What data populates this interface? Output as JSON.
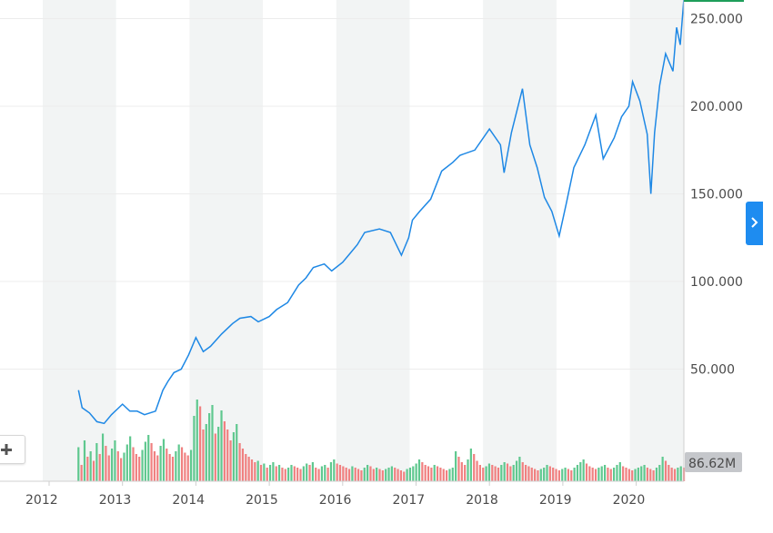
{
  "colors": {
    "price_line": "#1e88e5",
    "volume_up": "#5fc88f",
    "volume_down": "#f08080",
    "band": "#f2f4f4",
    "grid": "#ececec",
    "label_badge": "#c5c7cb",
    "current_marker": "#1e9e5a",
    "accent_tab": "#1e8cf0"
  },
  "controls": {
    "expand_icon": "chevron-right-icon",
    "zoom_icon": "plus-icon"
  },
  "chart_data": {
    "type": "line",
    "title": "",
    "xlabel": "",
    "ylabel": "",
    "x_ticks": [
      "2012",
      "2013",
      "2014",
      "2015",
      "2016",
      "2017",
      "2018",
      "2019",
      "2020"
    ],
    "y_ticks": [
      "50.000",
      "100.000",
      "150.000",
      "200.000",
      "250.000"
    ],
    "xlim": [
      2011.6,
      2020.8
    ],
    "ylim": [
      -3,
      265
    ],
    "grid": true,
    "alternating_year_bands": true,
    "volume_badge": "86.62M",
    "series": [
      {
        "values_x": [
          2012.4,
          2012.45,
          2012.55,
          2012.65,
          2012.75,
          2012.85,
          2013.0,
          2013.1,
          2013.2,
          2013.3,
          2013.45,
          2013.55,
          2013.62,
          2013.7,
          2013.8,
          2013.9,
          2014.0,
          2014.1,
          2014.2,
          2014.35,
          2014.5,
          2014.6,
          2014.75,
          2014.85,
          2015.0,
          2015.1,
          2015.25,
          2015.4,
          2015.5,
          2015.6,
          2015.75,
          2015.85,
          2016.0,
          2016.1,
          2016.2,
          2016.3,
          2016.5,
          2016.65,
          2016.8,
          2016.9,
          2016.95,
          2017.05,
          2017.2,
          2017.35,
          2017.5,
          2017.6,
          2017.8,
          2018.0,
          2018.15,
          2018.2,
          2018.3,
          2018.45,
          2018.55,
          2018.65,
          2018.75,
          2018.85,
          2018.95,
          2019.05,
          2019.15,
          2019.3,
          2019.45,
          2019.55,
          2019.7,
          2019.8,
          2019.9,
          2019.95,
          2020.05,
          2020.15,
          2020.2,
          2020.25,
          2020.32,
          2020.4,
          2020.5,
          2020.55,
          2020.6,
          2020.65
        ],
        "values": [
          38,
          28,
          25,
          20,
          19,
          24,
          30,
          26,
          26,
          24,
          26,
          38,
          43,
          48,
          50,
          58,
          68,
          60,
          63,
          70,
          76,
          79,
          80,
          77,
          80,
          84,
          88,
          98,
          102,
          108,
          110,
          106,
          111,
          116,
          121,
          128,
          130,
          128,
          115,
          125,
          135,
          140,
          147,
          163,
          168,
          172,
          175,
          187,
          178,
          162,
          185,
          210,
          178,
          165,
          148,
          140,
          126,
          145,
          165,
          178,
          195,
          170,
          182,
          194,
          200,
          214,
          203,
          184,
          150,
          185,
          212,
          230,
          220,
          245,
          235,
          262
        ]
      }
    ],
    "volume_series": [
      {
        "name": "volume",
        "x_start": 2012.4,
        "x_end": 2020.65,
        "values": [
          25,
          12,
          30,
          18,
          22,
          15,
          28,
          20,
          35,
          26,
          19,
          24,
          30,
          22,
          17,
          21,
          27,
          33,
          25,
          20,
          18,
          23,
          29,
          34,
          28,
          22,
          19,
          26,
          31,
          24,
          20,
          18,
          22,
          27,
          25,
          21,
          19,
          23,
          48,
          60,
          55,
          38,
          42,
          50,
          56,
          35,
          40,
          52,
          44,
          38,
          30,
          36,
          42,
          28,
          24,
          20,
          18,
          16,
          14,
          15,
          12,
          13,
          10,
          12,
          14,
          11,
          12,
          10,
          9,
          10,
          12,
          11,
          10,
          9,
          11,
          13,
          12,
          14,
          10,
          9,
          11,
          12,
          10,
          14,
          16,
          13,
          12,
          11,
          10,
          9,
          11,
          10,
          9,
          8,
          10,
          12,
          11,
          9,
          10,
          9,
          8,
          9,
          10,
          11,
          10,
          9,
          8,
          7,
          9,
          10,
          11,
          13,
          16,
          14,
          12,
          11,
          10,
          12,
          11,
          10,
          9,
          8,
          9,
          10,
          22,
          18,
          14,
          12,
          16,
          24,
          20,
          15,
          12,
          10,
          11,
          13,
          12,
          11,
          10,
          12,
          14,
          13,
          11,
          12,
          15,
          18,
          14,
          12,
          11,
          10,
          9,
          8,
          9,
          10,
          12,
          11,
          10,
          9,
          8,
          9,
          10,
          9,
          8,
          10,
          12,
          14,
          16,
          13,
          11,
          10,
          9,
          10,
          11,
          12,
          10,
          9,
          10,
          12,
          14,
          11,
          10,
          9,
          8,
          9,
          10,
          11,
          12,
          10,
          9,
          8,
          10,
          12,
          18,
          15,
          12,
          10,
          9,
          10,
          11,
          10
        ]
      }
    ]
  }
}
